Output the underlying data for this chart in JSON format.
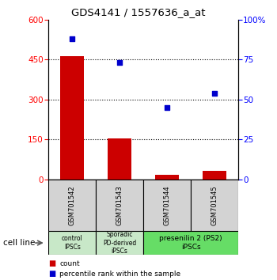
{
  "title": "GDS4141 / 1557636_a_at",
  "samples": [
    "GSM701542",
    "GSM701543",
    "GSM701544",
    "GSM701545"
  ],
  "counts": [
    462,
    152,
    18,
    30
  ],
  "percentiles": [
    88,
    73,
    45,
    54
  ],
  "ylim_left": [
    0,
    600
  ],
  "ylim_right": [
    0,
    100
  ],
  "yticks_left": [
    0,
    150,
    300,
    450,
    600
  ],
  "yticks_right": [
    0,
    25,
    50,
    75,
    100
  ],
  "groups": [
    {
      "label": "control\nIPSCs",
      "span": [
        0,
        1
      ],
      "color": "#c8e8c8"
    },
    {
      "label": "Sporadic\nPD-derived\niPSCs",
      "span": [
        1,
        2
      ],
      "color": "#c8e8c8"
    },
    {
      "label": "presenilin 2 (PS2)\niPSCs",
      "span": [
        2,
        4
      ],
      "color": "#66dd66"
    }
  ],
  "bar_color": "#cc0000",
  "scatter_color": "#0000cc",
  "cell_line_label": "cell line",
  "legend_count_label": "count",
  "legend_percentile_label": "percentile rank within the sample",
  "gridline_values": [
    150,
    300,
    450
  ],
  "bar_width": 0.5
}
